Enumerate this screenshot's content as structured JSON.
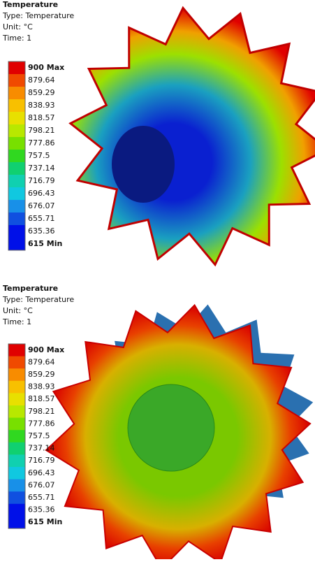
{
  "panels": [
    {
      "title": "Temperature",
      "type_line": "Type: Temperature",
      "unit_line": "Unit: °C",
      "time_line": "Time: 1",
      "legend": {
        "labels": [
          "900 Max",
          "879.64",
          "859.29",
          "838.93",
          "818.57",
          "798.21",
          "777.86",
          "757.5",
          "737.14",
          "716.79",
          "696.43",
          "676.07",
          "655.71",
          "635.36",
          "615 Min"
        ],
        "colors": [
          "#e00000",
          "#f04a00",
          "#f88c00",
          "#f8c000",
          "#e8e000",
          "#b8e800",
          "#78e000",
          "#30d820",
          "#10d070",
          "#10d0b0",
          "#10c8e0",
          "#1890e8",
          "#1050e0",
          "#0010e8"
        ]
      }
    },
    {
      "title": "Temperature",
      "type_line": "Type: Temperature",
      "unit_line": "Unit: °C",
      "time_line": "Time: 1",
      "legend": {
        "labels": [
          "900 Max",
          "879.64",
          "859.29",
          "838.93",
          "818.57",
          "798.21",
          "777.86",
          "757.5",
          "737.14",
          "716.79",
          "696.43",
          "676.07",
          "655.71",
          "635.36",
          "615 Min"
        ],
        "colors": [
          "#e00000",
          "#f04a00",
          "#f88c00",
          "#f8c000",
          "#e8e000",
          "#b8e800",
          "#78e000",
          "#30d820",
          "#10d070",
          "#10d0b0",
          "#10c8e0",
          "#1890e8",
          "#1050e0",
          "#0010e8"
        ]
      }
    }
  ]
}
